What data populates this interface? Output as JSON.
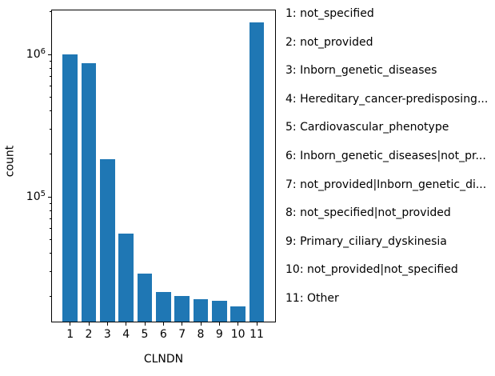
{
  "figure": {
    "background": "#ffffff",
    "bar_color": "#1f77b4",
    "axis_color": "#000000",
    "text_color": "#000000"
  },
  "chart_data": {
    "type": "bar",
    "title": "",
    "xlabel": "CLNDN",
    "ylabel": "count",
    "yscale": "log",
    "ylim": [
      13300,
      2040000
    ],
    "grid": false,
    "legend_position": "right-of-plot",
    "categories": [
      "1",
      "2",
      "3",
      "4",
      "5",
      "6",
      "7",
      "8",
      "9",
      "10",
      "11"
    ],
    "values": [
      1000000,
      870000,
      185000,
      55000,
      29000,
      21500,
      20000,
      19000,
      18500,
      17000,
      1670000
    ],
    "y_ticks": [
      {
        "value": 100000,
        "base": "10",
        "exponent": "5"
      },
      {
        "value": 1000000,
        "base": "10",
        "exponent": "6"
      }
    ],
    "legend": [
      "1: not_specified",
      "2: not_provided",
      "3: Inborn_genetic_diseases",
      "4: Hereditary_cancer-predisposing...",
      "5: Cardiovascular_phenotype",
      "6: Inborn_genetic_diseases|not_pr...",
      "7: not_provided|Inborn_genetic_di...",
      "8: not_specified|not_provided",
      "9: Primary_ciliary_dyskinesia",
      "10: not_provided|not_specified",
      "11: Other"
    ]
  }
}
